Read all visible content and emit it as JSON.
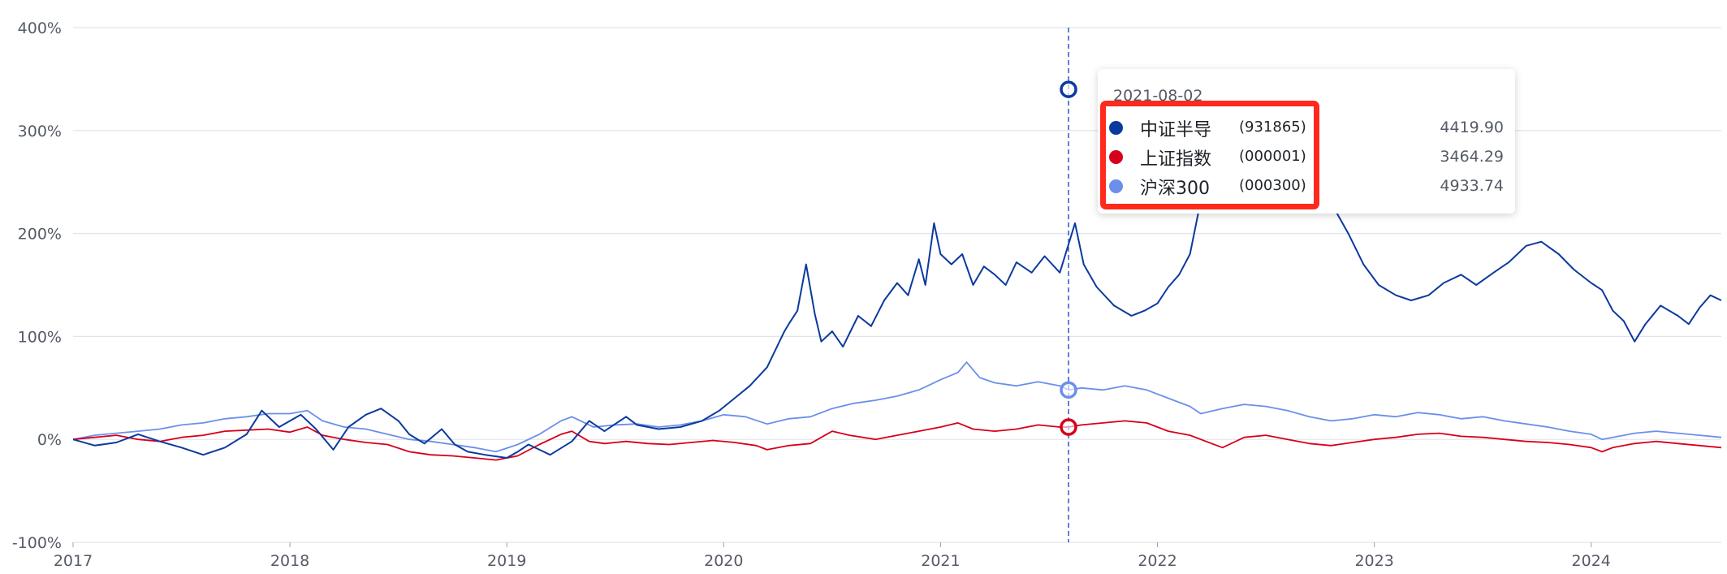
{
  "chart_data": {
    "type": "line",
    "title": "",
    "xlabel": "",
    "ylabel": "",
    "y_unit": "%",
    "ylim": [
      -100,
      400
    ],
    "yticks": [
      -100,
      0,
      100,
      200,
      300,
      400
    ],
    "ytick_labels": [
      "-100%",
      "0%",
      "100%",
      "200%",
      "300%",
      "400%"
    ],
    "xlim": [
      2017.0,
      2024.6
    ],
    "xticks": [
      2017,
      2018,
      2019,
      2020,
      2021,
      2022,
      2023,
      2024
    ],
    "xtick_labels": [
      "2017",
      "2018",
      "2019",
      "2020",
      "2021",
      "2022",
      "2023",
      "2024"
    ],
    "grid": true,
    "crosshair_x": 2021.59,
    "series": [
      {
        "name": "中证半导",
        "code": "(931865)",
        "color": "#0b3a9e",
        "points": [
          [
            2017.0,
            0
          ],
          [
            2017.1,
            -6
          ],
          [
            2017.2,
            -3
          ],
          [
            2017.3,
            5
          ],
          [
            2017.4,
            -2
          ],
          [
            2017.5,
            -8
          ],
          [
            2017.6,
            -15
          ],
          [
            2017.7,
            -8
          ],
          [
            2017.8,
            5
          ],
          [
            2017.87,
            28
          ],
          [
            2017.95,
            12
          ],
          [
            2018.05,
            24
          ],
          [
            2018.12,
            10
          ],
          [
            2018.2,
            -10
          ],
          [
            2018.27,
            12
          ],
          [
            2018.35,
            24
          ],
          [
            2018.42,
            30
          ],
          [
            2018.5,
            18
          ],
          [
            2018.55,
            5
          ],
          [
            2018.62,
            -4
          ],
          [
            2018.7,
            10
          ],
          [
            2018.76,
            -5
          ],
          [
            2018.82,
            -12
          ],
          [
            2018.9,
            -15
          ],
          [
            2019.0,
            -18
          ],
          [
            2019.05,
            -12
          ],
          [
            2019.1,
            -5
          ],
          [
            2019.15,
            -10
          ],
          [
            2019.2,
            -15
          ],
          [
            2019.3,
            -2
          ],
          [
            2019.38,
            18
          ],
          [
            2019.45,
            8
          ],
          [
            2019.55,
            22
          ],
          [
            2019.6,
            14
          ],
          [
            2019.7,
            10
          ],
          [
            2019.8,
            12
          ],
          [
            2019.9,
            18
          ],
          [
            2019.98,
            28
          ],
          [
            2020.05,
            40
          ],
          [
            2020.12,
            52
          ],
          [
            2020.2,
            70
          ],
          [
            2020.28,
            105
          ],
          [
            2020.3,
            112
          ],
          [
            2020.34,
            125
          ],
          [
            2020.38,
            170
          ],
          [
            2020.42,
            122
          ],
          [
            2020.45,
            95
          ],
          [
            2020.5,
            105
          ],
          [
            2020.55,
            90
          ],
          [
            2020.62,
            120
          ],
          [
            2020.68,
            110
          ],
          [
            2020.74,
            135
          ],
          [
            2020.8,
            152
          ],
          [
            2020.85,
            140
          ],
          [
            2020.9,
            175
          ],
          [
            2020.93,
            150
          ],
          [
            2020.97,
            210
          ],
          [
            2021.0,
            180
          ],
          [
            2021.05,
            170
          ],
          [
            2021.1,
            180
          ],
          [
            2021.15,
            150
          ],
          [
            2021.2,
            168
          ],
          [
            2021.25,
            160
          ],
          [
            2021.3,
            150
          ],
          [
            2021.35,
            172
          ],
          [
            2021.42,
            162
          ],
          [
            2021.48,
            178
          ],
          [
            2021.55,
            162
          ],
          [
            2021.62,
            210
          ],
          [
            2021.66,
            170
          ],
          [
            2021.72,
            148
          ],
          [
            2021.8,
            130
          ],
          [
            2021.88,
            120
          ],
          [
            2021.94,
            125
          ],
          [
            2022.0,
            132
          ],
          [
            2022.05,
            148
          ],
          [
            2022.1,
            160
          ],
          [
            2022.15,
            180
          ],
          [
            2022.2,
            232
          ],
          [
            2022.25,
            255
          ],
          [
            2022.3,
            272
          ],
          [
            2022.35,
            290
          ],
          [
            2022.42,
            320
          ],
          [
            2022.5,
            338
          ],
          [
            2022.55,
            342
          ],
          [
            2022.6,
            338
          ],
          [
            2022.65,
            300
          ],
          [
            2022.72,
            270
          ],
          [
            2022.8,
            230
          ],
          [
            2022.88,
            200
          ],
          [
            2022.95,
            170
          ],
          [
            2023.02,
            150
          ],
          [
            2023.1,
            140
          ],
          [
            2023.17,
            135
          ],
          [
            2023.25,
            140
          ],
          [
            2023.32,
            152
          ],
          [
            2023.4,
            160
          ],
          [
            2023.47,
            150
          ],
          [
            2023.55,
            162
          ],
          [
            2023.62,
            172
          ],
          [
            2023.7,
            188
          ],
          [
            2023.77,
            192
          ],
          [
            2023.85,
            180
          ],
          [
            2023.92,
            165
          ],
          [
            2024.0,
            152
          ],
          [
            2024.05,
            145
          ],
          [
            2024.1,
            125
          ],
          [
            2024.15,
            115
          ],
          [
            2024.2,
            95
          ],
          [
            2024.25,
            112
          ],
          [
            2024.32,
            130
          ],
          [
            2024.4,
            120
          ],
          [
            2024.45,
            112
          ],
          [
            2024.5,
            128
          ],
          [
            2024.55,
            140
          ],
          [
            2024.6,
            135
          ]
        ]
      },
      {
        "name": "上证指数",
        "code": "(000001)",
        "color": "#d7001b",
        "points": [
          [
            2017.0,
            0
          ],
          [
            2017.1,
            2
          ],
          [
            2017.2,
            4
          ],
          [
            2017.3,
            0
          ],
          [
            2017.4,
            -2
          ],
          [
            2017.5,
            2
          ],
          [
            2017.6,
            4
          ],
          [
            2017.7,
            8
          ],
          [
            2017.8,
            9
          ],
          [
            2017.9,
            10
          ],
          [
            2018.0,
            7
          ],
          [
            2018.08,
            12
          ],
          [
            2018.15,
            4
          ],
          [
            2018.25,
            0
          ],
          [
            2018.35,
            -3
          ],
          [
            2018.45,
            -5
          ],
          [
            2018.55,
            -12
          ],
          [
            2018.65,
            -15
          ],
          [
            2018.75,
            -16
          ],
          [
            2018.85,
            -18
          ],
          [
            2018.95,
            -20
          ],
          [
            2019.05,
            -16
          ],
          [
            2019.15,
            -5
          ],
          [
            2019.25,
            5
          ],
          [
            2019.3,
            8
          ],
          [
            2019.38,
            -2
          ],
          [
            2019.45,
            -4
          ],
          [
            2019.55,
            -2
          ],
          [
            2019.65,
            -4
          ],
          [
            2019.75,
            -5
          ],
          [
            2019.85,
            -3
          ],
          [
            2019.95,
            -1
          ],
          [
            2020.05,
            -3
          ],
          [
            2020.15,
            -6
          ],
          [
            2020.2,
            -10
          ],
          [
            2020.3,
            -6
          ],
          [
            2020.4,
            -4
          ],
          [
            2020.5,
            8
          ],
          [
            2020.58,
            4
          ],
          [
            2020.7,
            0
          ],
          [
            2020.8,
            4
          ],
          [
            2020.9,
            8
          ],
          [
            2021.0,
            12
          ],
          [
            2021.08,
            16
          ],
          [
            2021.15,
            10
          ],
          [
            2021.25,
            8
          ],
          [
            2021.35,
            10
          ],
          [
            2021.45,
            14
          ],
          [
            2021.55,
            12
          ],
          [
            2021.59,
            12
          ],
          [
            2021.65,
            14
          ],
          [
            2021.75,
            16
          ],
          [
            2021.85,
            18
          ],
          [
            2021.95,
            16
          ],
          [
            2022.05,
            8
          ],
          [
            2022.15,
            4
          ],
          [
            2022.25,
            -4
          ],
          [
            2022.3,
            -8
          ],
          [
            2022.4,
            2
          ],
          [
            2022.5,
            4
          ],
          [
            2022.6,
            0
          ],
          [
            2022.7,
            -4
          ],
          [
            2022.8,
            -6
          ],
          [
            2022.9,
            -3
          ],
          [
            2023.0,
            0
          ],
          [
            2023.1,
            2
          ],
          [
            2023.2,
            5
          ],
          [
            2023.3,
            6
          ],
          [
            2023.4,
            3
          ],
          [
            2023.5,
            2
          ],
          [
            2023.6,
            0
          ],
          [
            2023.7,
            -2
          ],
          [
            2023.8,
            -3
          ],
          [
            2023.9,
            -5
          ],
          [
            2024.0,
            -8
          ],
          [
            2024.05,
            -12
          ],
          [
            2024.1,
            -8
          ],
          [
            2024.2,
            -4
          ],
          [
            2024.3,
            -2
          ],
          [
            2024.4,
            -4
          ],
          [
            2024.5,
            -6
          ],
          [
            2024.6,
            -8
          ]
        ]
      },
      {
        "name": "沪深300",
        "code": "(000300)",
        "color": "#6b8fea",
        "points": [
          [
            2017.0,
            0
          ],
          [
            2017.1,
            4
          ],
          [
            2017.2,
            6
          ],
          [
            2017.3,
            8
          ],
          [
            2017.4,
            10
          ],
          [
            2017.5,
            14
          ],
          [
            2017.6,
            16
          ],
          [
            2017.7,
            20
          ],
          [
            2017.8,
            22
          ],
          [
            2017.9,
            25
          ],
          [
            2018.0,
            25
          ],
          [
            2018.08,
            28
          ],
          [
            2018.15,
            18
          ],
          [
            2018.25,
            12
          ],
          [
            2018.35,
            10
          ],
          [
            2018.45,
            5
          ],
          [
            2018.55,
            0
          ],
          [
            2018.65,
            -2
          ],
          [
            2018.75,
            -5
          ],
          [
            2018.85,
            -8
          ],
          [
            2018.95,
            -12
          ],
          [
            2019.05,
            -5
          ],
          [
            2019.15,
            5
          ],
          [
            2019.25,
            18
          ],
          [
            2019.3,
            22
          ],
          [
            2019.4,
            12
          ],
          [
            2019.5,
            14
          ],
          [
            2019.6,
            15
          ],
          [
            2019.7,
            12
          ],
          [
            2019.8,
            14
          ],
          [
            2019.9,
            18
          ],
          [
            2020.0,
            24
          ],
          [
            2020.1,
            22
          ],
          [
            2020.2,
            15
          ],
          [
            2020.3,
            20
          ],
          [
            2020.4,
            22
          ],
          [
            2020.5,
            30
          ],
          [
            2020.6,
            35
          ],
          [
            2020.7,
            38
          ],
          [
            2020.8,
            42
          ],
          [
            2020.9,
            48
          ],
          [
            2021.0,
            58
          ],
          [
            2021.08,
            65
          ],
          [
            2021.12,
            75
          ],
          [
            2021.18,
            60
          ],
          [
            2021.25,
            55
          ],
          [
            2021.35,
            52
          ],
          [
            2021.45,
            56
          ],
          [
            2021.55,
            52
          ],
          [
            2021.59,
            48
          ],
          [
            2021.65,
            50
          ],
          [
            2021.75,
            48
          ],
          [
            2021.85,
            52
          ],
          [
            2021.95,
            48
          ],
          [
            2022.05,
            40
          ],
          [
            2022.15,
            32
          ],
          [
            2022.2,
            25
          ],
          [
            2022.3,
            30
          ],
          [
            2022.4,
            34
          ],
          [
            2022.5,
            32
          ],
          [
            2022.6,
            28
          ],
          [
            2022.7,
            22
          ],
          [
            2022.8,
            18
          ],
          [
            2022.9,
            20
          ],
          [
            2023.0,
            24
          ],
          [
            2023.1,
            22
          ],
          [
            2023.2,
            26
          ],
          [
            2023.3,
            24
          ],
          [
            2023.4,
            20
          ],
          [
            2023.5,
            22
          ],
          [
            2023.6,
            18
          ],
          [
            2023.7,
            15
          ],
          [
            2023.8,
            12
          ],
          [
            2023.9,
            8
          ],
          [
            2024.0,
            5
          ],
          [
            2024.05,
            0
          ],
          [
            2024.1,
            2
          ],
          [
            2024.2,
            6
          ],
          [
            2024.3,
            8
          ],
          [
            2024.4,
            6
          ],
          [
            2024.5,
            4
          ],
          [
            2024.6,
            2
          ]
        ]
      }
    ]
  },
  "tooltip": {
    "date": "2021-08-02",
    "rows": [
      {
        "name": "中证半导",
        "code": "(931865)",
        "value": "4419.90",
        "color": "#0b3a9e"
      },
      {
        "name": "上证指数",
        "code": "(000001)",
        "value": "3464.29",
        "color": "#d7001b"
      },
      {
        "name": "沪深300",
        "code": "(000300)",
        "value": "4933.74",
        "color": "#6b8fea"
      }
    ]
  },
  "colors": {
    "highlight": "#ff2a1c",
    "grid": "#e1e4ea",
    "crosshair": "#2d55d6"
  }
}
